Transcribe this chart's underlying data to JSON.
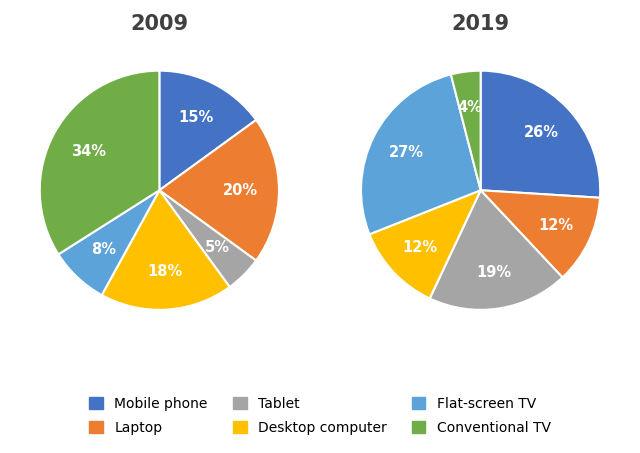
{
  "title_2009": "2009",
  "title_2019": "2019",
  "categories": [
    "Mobile phone",
    "Laptop",
    "Tablet",
    "Desktop computer",
    "Flat-screen TV",
    "Conventional TV"
  ],
  "colors": [
    "#4472C4",
    "#ED7D31",
    "#A5A5A5",
    "#FFC000",
    "#5BA3D9",
    "#70AD47"
  ],
  "values_2009": [
    15,
    20,
    5,
    18,
    8,
    34
  ],
  "values_2019": [
    26,
    12,
    19,
    12,
    27,
    4
  ],
  "labels_2009": [
    "15%",
    "20%",
    "5%",
    "18%",
    "8%",
    "34%"
  ],
  "labels_2019": [
    "26%",
    "12%",
    "19%",
    "12%",
    "27%",
    "4%"
  ],
  "startangle_2009": 90,
  "startangle_2019": 90,
  "title_fontsize": 15,
  "label_fontsize": 10.5,
  "legend_fontsize": 10,
  "background_color": "#FFFFFF"
}
